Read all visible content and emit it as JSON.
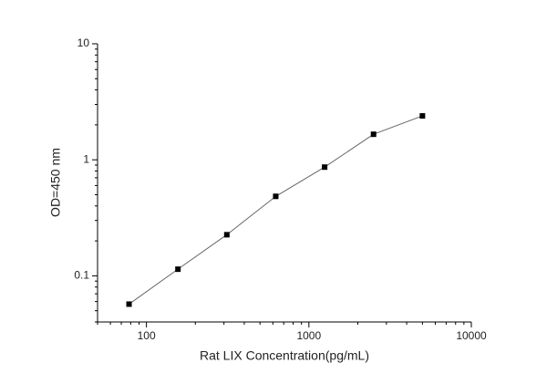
{
  "chart_data": {
    "type": "line",
    "x_label": "Rat LIX Concentration(pg/mL)",
    "y_label": "OD=450 nm",
    "x": [
      78.125,
      156.25,
      312.5,
      625,
      1250,
      2500,
      5000
    ],
    "values": [
      0.057,
      0.114,
      0.226,
      0.484,
      0.865,
      1.66,
      2.39
    ],
    "color": "#000000",
    "line_color": "#666666",
    "xlog": true,
    "ylog": true,
    "xlim": [
      50,
      10000
    ],
    "xticks": [
      100,
      1000,
      10000
    ],
    "ylim": [
      0.04,
      10
    ],
    "yticks": [
      0.1,
      1,
      10
    ]
  }
}
